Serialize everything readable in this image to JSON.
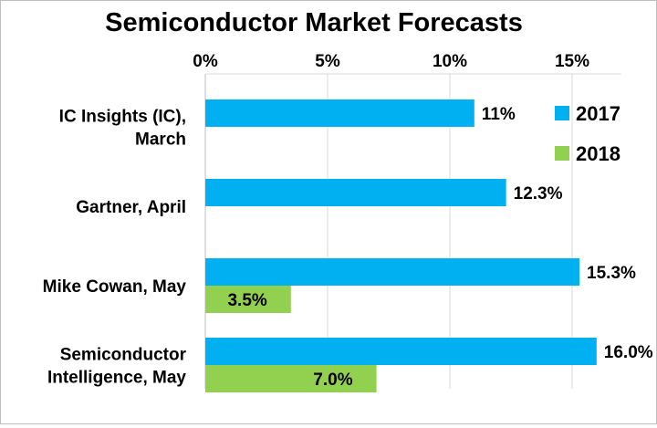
{
  "chart_data": {
    "type": "bar",
    "orientation": "horizontal",
    "title": "Semiconductor Market Forecasts",
    "categories": [
      [
        "IC Insights (IC),",
        "March"
      ],
      [
        "Gartner, April"
      ],
      [
        "Mike Cowan, May"
      ],
      [
        "Semiconductor",
        "Intelligence, May"
      ]
    ],
    "series": [
      {
        "name": "2017",
        "color": "#00B0F0",
        "values": [
          11,
          12.3,
          15.3,
          16.0
        ],
        "labels": [
          "11%",
          "12.3%",
          "15.3%",
          "16.0%"
        ]
      },
      {
        "name": "2018",
        "color": "#92D050",
        "values": [
          null,
          null,
          3.5,
          7.0
        ],
        "labels": [
          "",
          "",
          "3.5%",
          "7.0%"
        ]
      }
    ],
    "xlim": [
      0,
      17
    ],
    "ticks": [
      0,
      5,
      10,
      15
    ],
    "tick_labels": [
      "0%",
      "5%",
      "10%",
      "15%"
    ],
    "axis_position": "top",
    "grid": "vertical",
    "legend_position": "top-right"
  }
}
